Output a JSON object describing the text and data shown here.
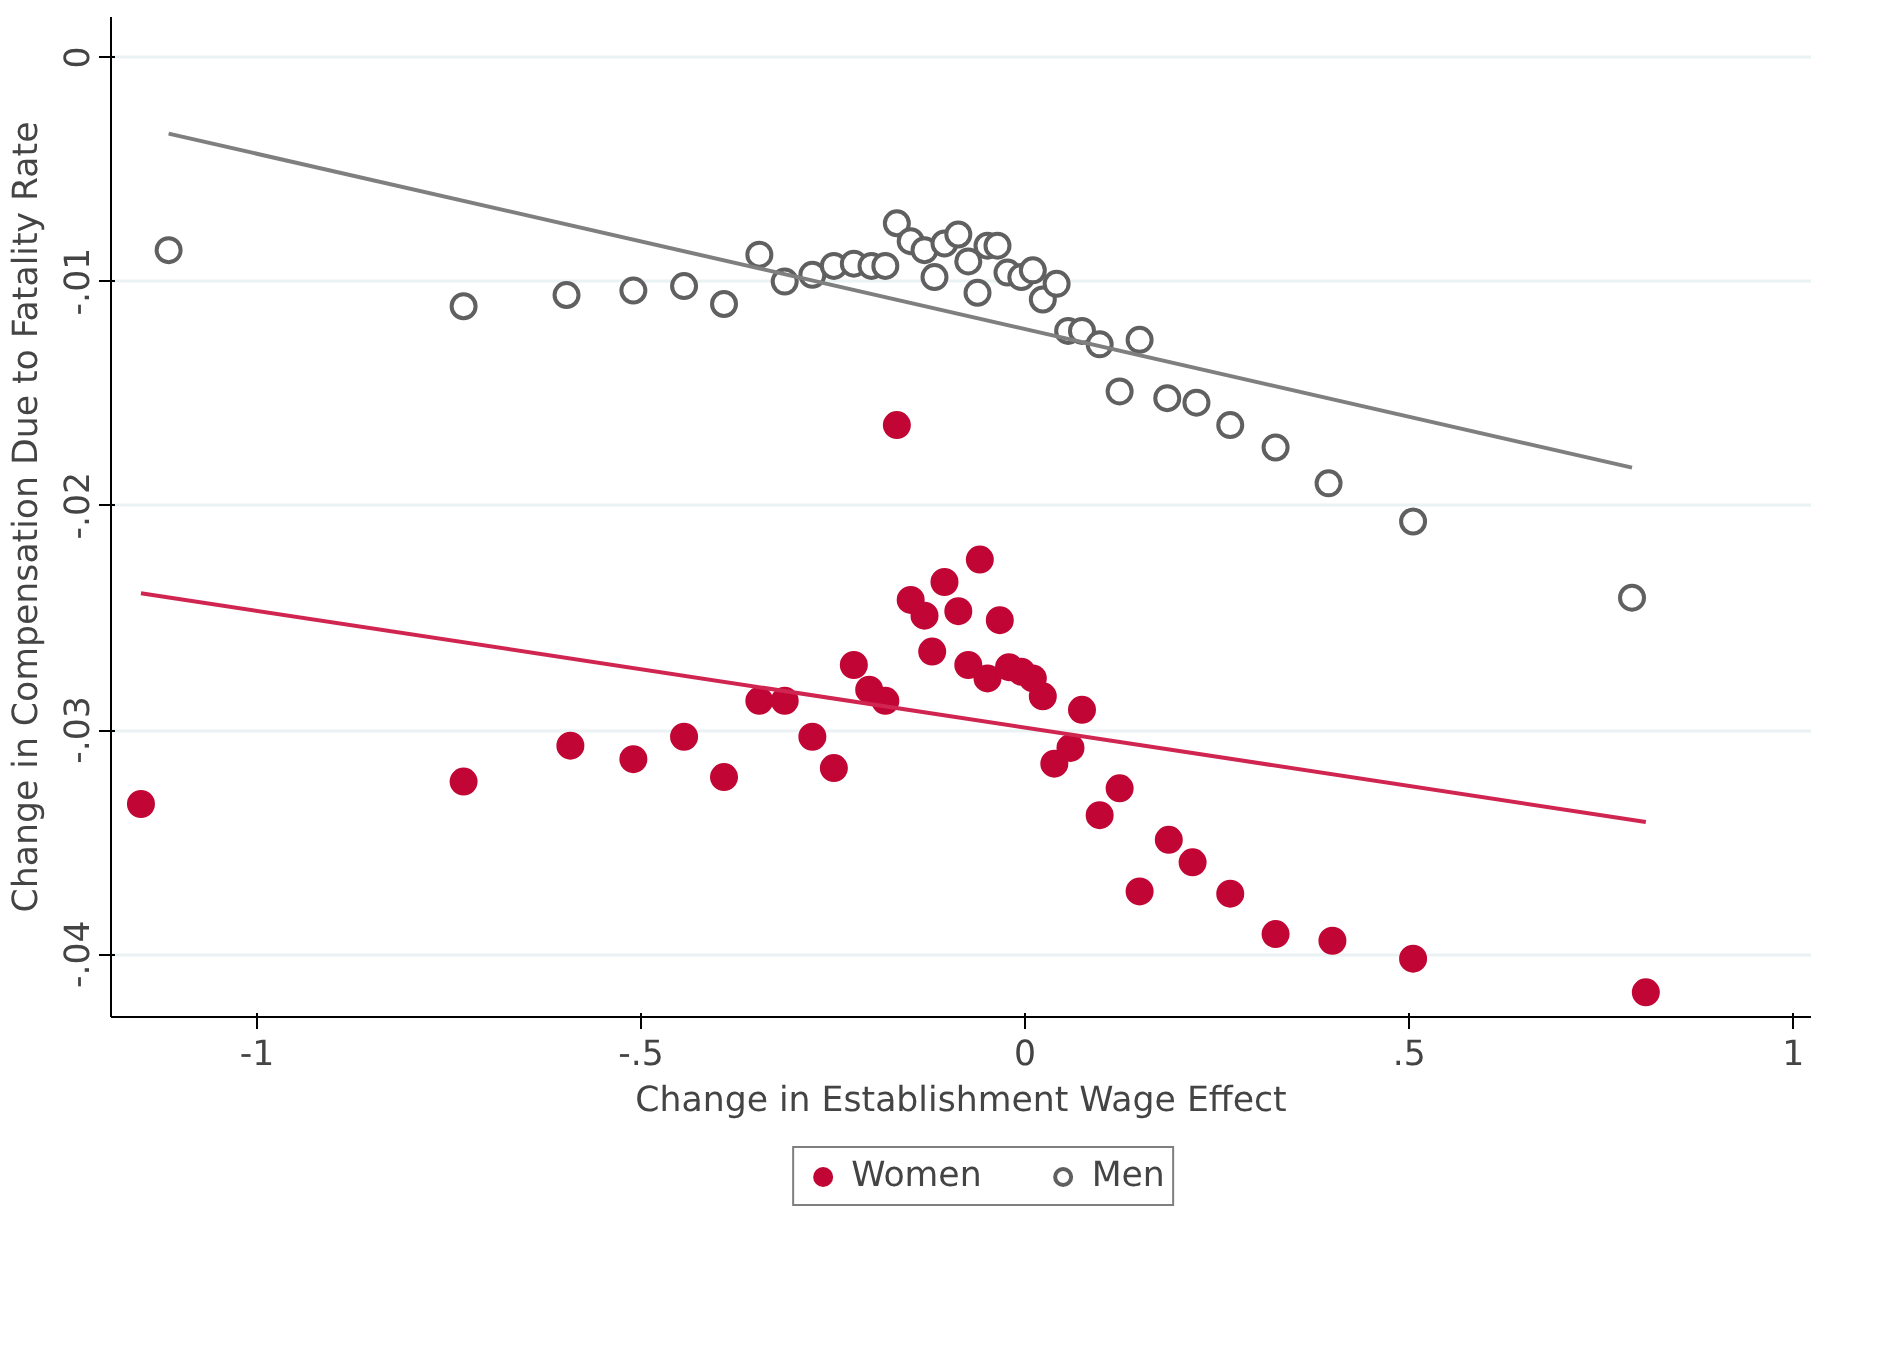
{
  "chart_data": {
    "type": "scatter",
    "xlabel": "Change in Establishment Wage Effect",
    "ylabel": "Change in Compensation Due to Fatality Rate",
    "xlim": [
      -1.19,
      1.023
    ],
    "ylim": [
      -0.0428,
      0.0018
    ],
    "xticks": [
      {
        "value": -1,
        "label": "-1"
      },
      {
        "value": -0.5,
        "label": "-.5"
      },
      0,
      {
        "value": 0.5,
        "label": ".5"
      },
      1
    ],
    "yticks": [
      0,
      {
        "value": -0.01,
        "label": "-.01"
      },
      {
        "value": -0.02,
        "label": "-.02"
      },
      {
        "value": -0.03,
        "label": "-.03"
      },
      {
        "value": -0.04,
        "label": "-.04"
      }
    ],
    "grid": "y",
    "legend": "bottom",
    "series": [
      {
        "name": "Women",
        "color": "#c10534",
        "marker": "circle",
        "x": [
          -1.151,
          -0.731,
          -0.592,
          -0.51,
          -0.444,
          -0.392,
          -0.346,
          -0.313,
          -0.277,
          -0.249,
          -0.223,
          -0.203,
          -0.182,
          -0.167,
          -0.149,
          -0.131,
          -0.121,
          -0.105,
          -0.087,
          -0.074,
          -0.059,
          -0.049,
          -0.033,
          -0.021,
          -0.005,
          0.01,
          0.023,
          0.038,
          0.059,
          0.074,
          0.097,
          0.123,
          0.149,
          0.187,
          0.218,
          0.267,
          0.326,
          0.4,
          0.505,
          0.808
        ],
        "values": [
          -0.0333,
          -0.0323,
          -0.0307,
          -0.0313,
          -0.0303,
          -0.0321,
          -0.0287,
          -0.0287,
          -0.0303,
          -0.0317,
          -0.0271,
          -0.0282,
          -0.0287,
          -0.0164,
          -0.0242,
          -0.0249,
          -0.0265,
          -0.0234,
          -0.0247,
          -0.0271,
          -0.0224,
          -0.0277,
          -0.0251,
          -0.0272,
          -0.0274,
          -0.0277,
          -0.0285,
          -0.0315,
          -0.0308,
          -0.0291,
          -0.0338,
          -0.0326,
          -0.0372,
          -0.0349,
          -0.0359,
          -0.0373,
          -0.0391,
          -0.0394,
          -0.0402,
          -0.0417
        ]
      },
      {
        "name": "Men",
        "color": "#606060",
        "marker": "circle_open",
        "x": [
          -1.115,
          -0.731,
          -0.597,
          -0.51,
          -0.444,
          -0.392,
          -0.346,
          -0.313,
          -0.277,
          -0.249,
          -0.223,
          -0.2,
          -0.182,
          -0.167,
          -0.149,
          -0.131,
          -0.118,
          -0.105,
          -0.087,
          -0.074,
          -0.062,
          -0.049,
          -0.036,
          -0.023,
          -0.005,
          0.01,
          0.023,
          0.041,
          0.056,
          0.074,
          0.097,
          0.123,
          0.149,
          0.185,
          0.223,
          0.267,
          0.326,
          0.395,
          0.505,
          0.79
        ],
        "values": [
          -0.0086,
          -0.0111,
          -0.0106,
          -0.0104,
          -0.0102,
          -0.011,
          -0.0088,
          -0.01,
          -0.0097,
          -0.0093,
          -0.0092,
          -0.0093,
          -0.0093,
          -0.0074,
          -0.0082,
          -0.0086,
          -0.0098,
          -0.0083,
          -0.0079,
          -0.0091,
          -0.0105,
          -0.0084,
          -0.0084,
          -0.0096,
          -0.0098,
          -0.0095,
          -0.0108,
          -0.0101,
          -0.0122,
          -0.0122,
          -0.0128,
          -0.0149,
          -0.0126,
          -0.0152,
          -0.0154,
          -0.0164,
          -0.0174,
          -0.019,
          -0.0207,
          -0.0241
        ]
      },
      {
        "type": "line",
        "color": "#7f7f7f",
        "x": [
          -1.115,
          0.79
        ],
        "values": [
          -0.0034,
          -0.0183
        ]
      },
      {
        "type": "line",
        "color": "#d02550",
        "x": [
          -1.151,
          0.808
        ],
        "values": [
          -0.0239,
          -0.0341
        ]
      }
    ]
  }
}
